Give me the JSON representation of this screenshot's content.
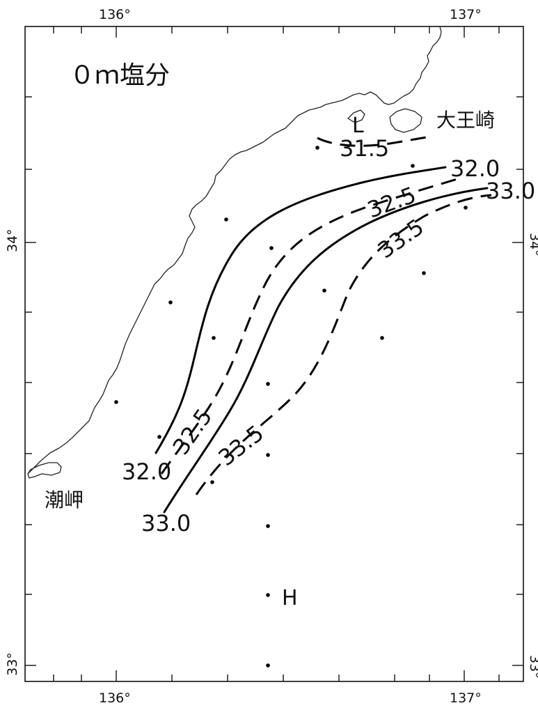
{
  "title": "０ｍ塩分",
  "places": {
    "daiozaki": "大王崎",
    "shionomisaki": "潮岬"
  },
  "markers": {
    "low": "L",
    "high": "H"
  },
  "axes": {
    "longitude_labels": [
      "136°",
      "137°"
    ],
    "latitude_labels": [
      "34°",
      "33°"
    ]
  },
  "contours": [
    {
      "value": "31.5",
      "style": "dashed"
    },
    {
      "value": "32.0",
      "style": "solid"
    },
    {
      "value": "32.5",
      "style": "dashed"
    },
    {
      "value": "33.0",
      "style": "solid"
    },
    {
      "value": "33.5",
      "style": "dashed"
    }
  ],
  "contour_labels": {
    "c315": "31.5",
    "c320_ne": "32.0",
    "c320_sw": "32.0",
    "c325_ne": "32.5",
    "c325_sw": "32.5",
    "c330_ne": "33.0",
    "c330_sw": "33.0",
    "c335_ne": "33.5",
    "c335_sw": "33.5"
  },
  "colors": {
    "ink": "#000000",
    "background": "#ffffff"
  }
}
